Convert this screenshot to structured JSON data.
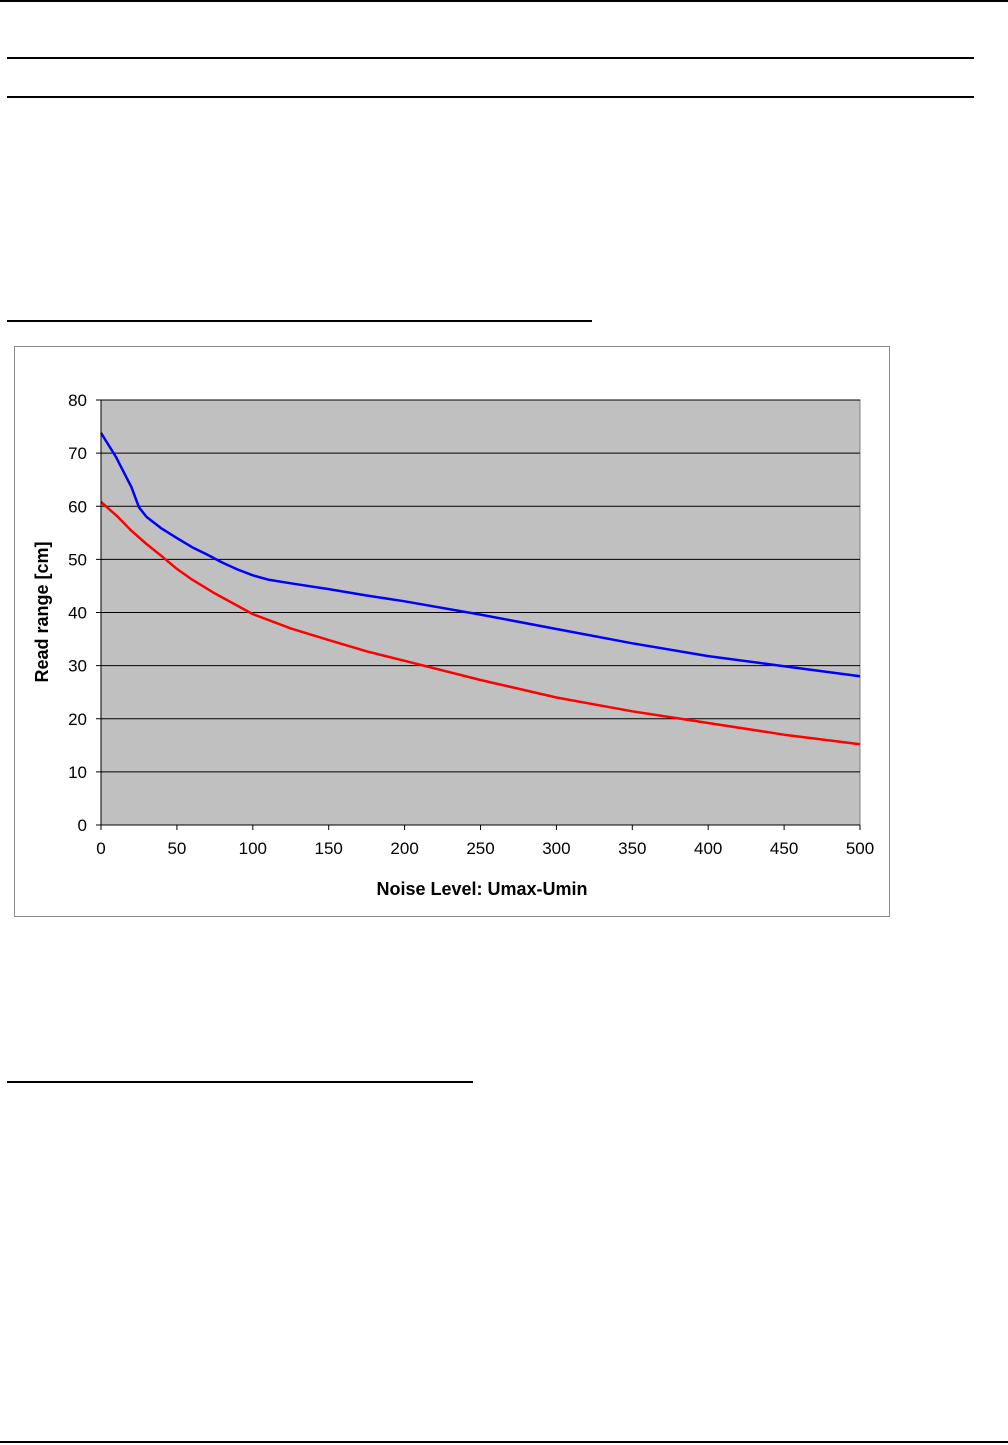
{
  "chart_data": {
    "type": "line",
    "xlabel": "Noise Level: Umax-Umin",
    "ylabel": "Read range [cm]",
    "xlim": [
      0,
      500
    ],
    "ylim": [
      0,
      80
    ],
    "x_ticks": [
      0,
      50,
      100,
      150,
      200,
      250,
      300,
      350,
      400,
      450,
      500
    ],
    "y_ticks": [
      0,
      10,
      20,
      30,
      40,
      50,
      60,
      70,
      80
    ],
    "grid": "horizontal",
    "background_color": "#c0c0c0",
    "series": [
      {
        "color": "#0000ff",
        "x": [
          0,
          10,
          20,
          25,
          30,
          40,
          50,
          60,
          70,
          80,
          90,
          100,
          110,
          125,
          150,
          175,
          200,
          250,
          300,
          350,
          400,
          450,
          500
        ],
        "y": [
          73.8,
          69.2,
          63.6,
          59.8,
          58,
          55.8,
          54,
          52.3,
          50.9,
          49.4,
          48.1,
          47,
          46.2,
          45.5,
          44.4,
          43.2,
          42.1,
          39.6,
          36.9,
          34.2,
          31.8,
          29.9,
          28
        ]
      },
      {
        "color": "#ff0000",
        "x": [
          0,
          10,
          20,
          30,
          40,
          50,
          60,
          75,
          100,
          125,
          150,
          175,
          200,
          250,
          300,
          350,
          400,
          450,
          500
        ],
        "y": [
          60.8,
          58.3,
          55.4,
          52.9,
          50.6,
          48.2,
          46.2,
          43.6,
          39.7,
          37,
          34.8,
          32.7,
          30.9,
          27.3,
          24,
          21.4,
          19.2,
          17,
          15.2
        ]
      }
    ]
  }
}
